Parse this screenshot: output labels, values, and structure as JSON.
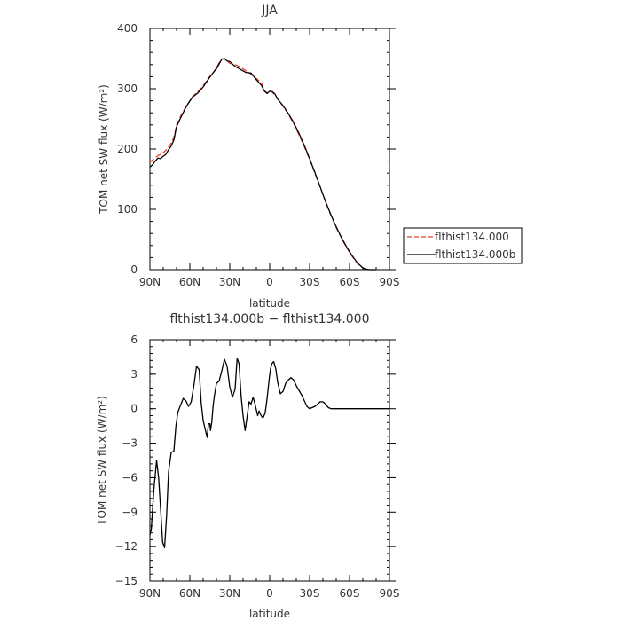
{
  "chart_data": [
    {
      "type": "line",
      "title": "JJA",
      "xlabel": "latitude",
      "ylabel": "TOM net SW flux (W/m²)",
      "xlim": [
        90,
        -90
      ],
      "ylim": [
        0,
        400
      ],
      "xticks": [
        90,
        60,
        30,
        0,
        -30,
        -60,
        -90
      ],
      "xtick_labels": [
        "90N",
        "60N",
        "30N",
        "0",
        "30S",
        "60S",
        "90S"
      ],
      "yticks": [
        0,
        100,
        200,
        300,
        400
      ],
      "ytick_labels": [
        "0",
        "100",
        "200",
        "300",
        "400"
      ],
      "legend": "right",
      "series": [
        {
          "name": "flthist134.000",
          "color": "#e8412b",
          "dash": true,
          "x": [
            90,
            88,
            86,
            84,
            82,
            80,
            78,
            76,
            74,
            72,
            70,
            66,
            62,
            58,
            54,
            50,
            46,
            42,
            40,
            38,
            36,
            34,
            32,
            30,
            26,
            22,
            18,
            14,
            10,
            6,
            4,
            2,
            0,
            -2,
            -4,
            -6,
            -10,
            -14,
            -18,
            -22,
            -26,
            -30,
            -34,
            -38,
            -42,
            -46,
            -50,
            -54,
            -58,
            -62,
            -66,
            -70,
            -72,
            -75,
            -80
          ],
          "y": [
            178,
            182,
            186,
            189,
            191,
            194,
            198,
            204,
            210,
            220,
            240,
            259,
            273,
            287,
            295,
            305,
            318,
            328,
            335,
            343,
            349,
            350,
            346,
            342,
            340,
            336,
            330,
            324,
            317,
            309,
            297,
            293,
            296,
            294,
            290,
            283,
            271,
            258,
            242,
            224,
            204,
            183,
            160,
            136,
            112,
            90,
            70,
            52,
            36,
            22,
            10,
            3,
            1,
            0,
            0
          ]
        },
        {
          "name": "flthist134.000b",
          "color": "#000000",
          "dash": false,
          "x": [
            90,
            88,
            86,
            84,
            82,
            80,
            78,
            76,
            74,
            72,
            70,
            66,
            62,
            58,
            54,
            50,
            46,
            42,
            40,
            38,
            36,
            34,
            32,
            30,
            26,
            22,
            18,
            14,
            10,
            6,
            4,
            2,
            0,
            -2,
            -4,
            -6,
            -10,
            -14,
            -18,
            -22,
            -26,
            -30,
            -34,
            -38,
            -42,
            -46,
            -50,
            -54,
            -58,
            -62,
            -66,
            -70,
            -72,
            -75,
            -80
          ],
          "y": [
            170,
            174,
            180,
            185,
            184,
            188,
            191,
            199,
            205,
            215,
            237,
            256,
            273,
            286,
            293,
            303,
            316,
            328,
            333,
            341,
            349,
            350,
            346,
            345,
            337,
            332,
            327,
            326,
            315,
            305,
            296,
            292,
            296,
            295,
            291,
            283,
            272,
            259,
            244,
            226,
            206,
            184,
            161,
            137,
            113,
            91,
            71,
            53,
            37,
            23,
            11,
            3,
            1,
            0,
            0
          ]
        }
      ]
    },
    {
      "type": "line",
      "title": "flthist134.000b − flthist134.000",
      "xlabel": "latitude",
      "ylabel": "TOM net SW flux (W/m²)",
      "xlim": [
        90,
        -90
      ],
      "ylim": [
        -15,
        6
      ],
      "xticks": [
        90,
        60,
        30,
        0,
        -30,
        -60,
        -90
      ],
      "xtick_labels": [
        "90N",
        "60N",
        "30N",
        "0",
        "30S",
        "60S",
        "90S"
      ],
      "yticks": [
        6,
        3,
        0,
        -3,
        -6,
        -9,
        -12,
        -15
      ],
      "ytick_labels": [
        "6",
        "3",
        "0",
        "−3",
        "−6",
        "−9",
        "−12",
        "−15"
      ],
      "series": [
        {
          "color": "#000000",
          "x": [
            90,
            89,
            87,
            85,
            83.5,
            82,
            80.5,
            79,
            77.5,
            76,
            74,
            72,
            70.5,
            69,
            67,
            65,
            63,
            61,
            59,
            57,
            55,
            53,
            51.5,
            50,
            48.5,
            47,
            46,
            45,
            44.5,
            43.5,
            42.5,
            41.5,
            40,
            38,
            36,
            34,
            32,
            30,
            28,
            26,
            24.5,
            23,
            21.5,
            20,
            18.5,
            17,
            15.5,
            14,
            12.5,
            11,
            9,
            8,
            6.5,
            5,
            3.5,
            2.5,
            1.5,
            0.5,
            -0.5,
            -1.5,
            -3,
            -4.5,
            -6,
            -8,
            -10,
            -12,
            -14,
            -16,
            -18,
            -20,
            -22,
            -24,
            -26,
            -28,
            -30,
            -32,
            -34,
            -36,
            -38,
            -40,
            -42,
            -44,
            -46,
            -48,
            -50,
            -52,
            -54,
            -56,
            -58,
            -60,
            -62,
            -64,
            -66,
            -68,
            -70,
            -75,
            -80,
            -85,
            -90
          ],
          "y": [
            -11,
            -10.5,
            -7,
            -4.5,
            -6,
            -8.7,
            -11.6,
            -12.1,
            -9.3,
            -5.5,
            -3.8,
            -3.7,
            -1.5,
            -0.3,
            0.3,
            0.9,
            0.7,
            0.2,
            0.6,
            2,
            3.7,
            3.4,
            0.5,
            -1,
            -1.8,
            -2.5,
            -1.3,
            -1.3,
            -1.9,
            -1.1,
            0.3,
            1.2,
            2.2,
            2.4,
            3.3,
            4.3,
            3.7,
            1.9,
            1,
            1.7,
            4.4,
            3.9,
            1.1,
            -0.6,
            -1.9,
            -0.7,
            0.6,
            0.4,
            1,
            0.4,
            -0.6,
            -0.2,
            -0.6,
            -0.8,
            -0.4,
            0.4,
            1.4,
            2.5,
            3.4,
            3.9,
            4.1,
            3.5,
            2.3,
            1.3,
            1.5,
            2.2,
            2.5,
            2.7,
            2.5,
            2,
            1.6,
            1.2,
            0.7,
            0.2,
            0,
            0.1,
            0.2,
            0.4,
            0.6,
            0.6,
            0.4,
            0.1,
            0,
            0,
            0,
            0,
            0,
            0,
            0,
            0,
            0,
            0,
            0,
            0,
            0,
            0,
            0,
            0,
            0
          ]
        }
      ]
    }
  ]
}
